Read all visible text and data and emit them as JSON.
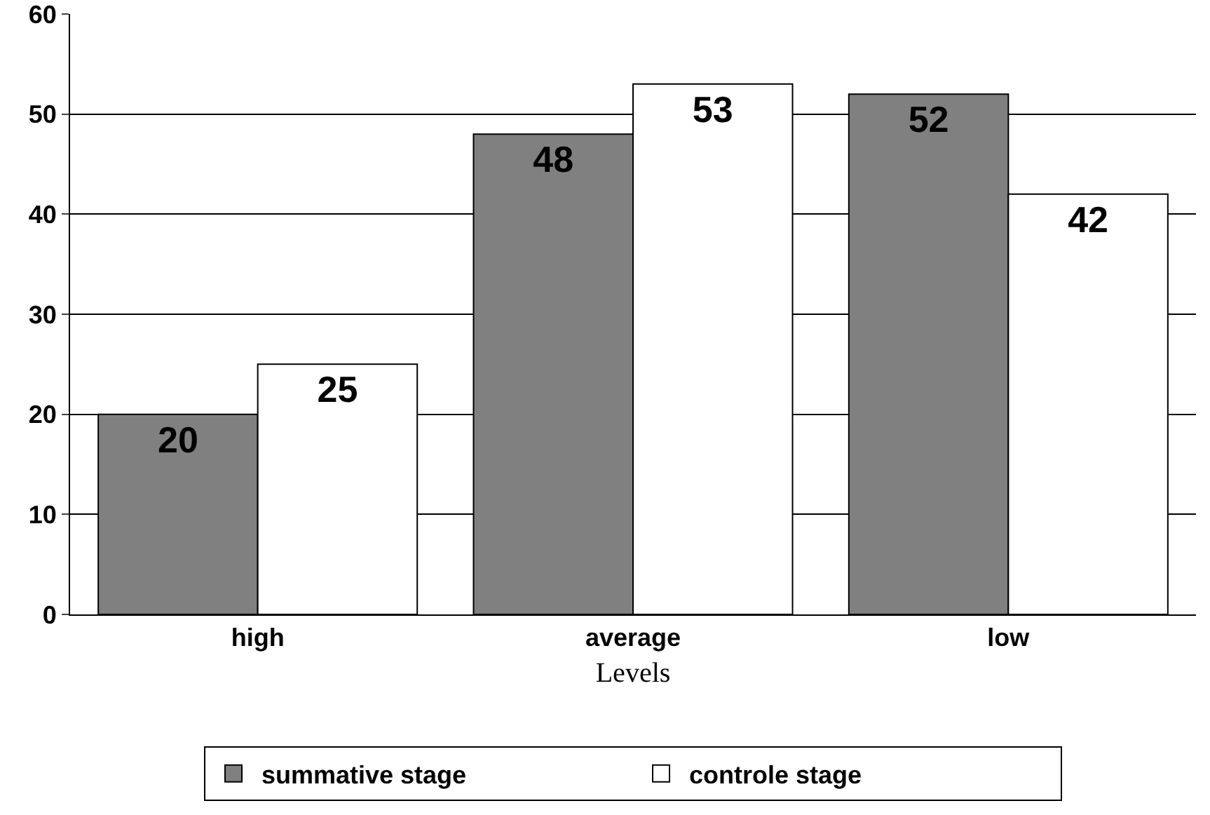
{
  "chart_data": {
    "type": "bar",
    "xlabel": "Levels",
    "categories": [
      "high",
      "average",
      "low"
    ],
    "series": [
      {
        "name": "summative stage",
        "color": "#808080",
        "values": [
          20,
          48,
          52
        ]
      },
      {
        "name": "controle stage",
        "color": "#ffffff",
        "values": [
          25,
          53,
          42
        ]
      }
    ],
    "ylim": [
      0,
      60
    ],
    "yticks": [
      0,
      10,
      20,
      30,
      40,
      50,
      60
    ],
    "grid": "y",
    "legend": "bottom",
    "data_labels": true
  }
}
